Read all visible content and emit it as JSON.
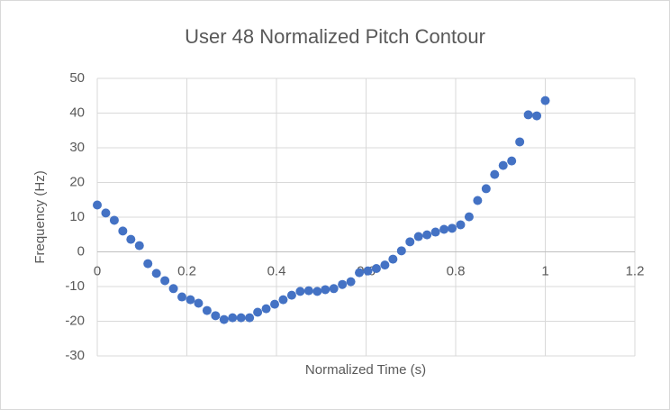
{
  "chart_data": {
    "type": "scatter",
    "title": "User 48 Normalized Pitch Contour",
    "x_label": "Normalized Time (s)",
    "y_label": "Frequency (Hz)",
    "color": "#4472c4",
    "grid": true,
    "xlim": [
      0,
      1.2
    ],
    "xticks": [
      0,
      0.2,
      0.4,
      0.6,
      0.8,
      1,
      1.2
    ],
    "ylim": [
      -30,
      50
    ],
    "yticks": [
      -30,
      -20,
      -10,
      0,
      10,
      20,
      30,
      40,
      50
    ],
    "x": [
      0,
      0.019,
      0.038,
      0.057,
      0.075,
      0.094,
      0.113,
      0.132,
      0.151,
      0.17,
      0.189,
      0.208,
      0.226,
      0.245,
      0.264,
      0.283,
      0.302,
      0.321,
      0.34,
      0.358,
      0.377,
      0.396,
      0.415,
      0.434,
      0.453,
      0.472,
      0.491,
      0.509,
      0.528,
      0.547,
      0.566,
      0.585,
      0.604,
      0.623,
      0.642,
      0.66,
      0.679,
      0.698,
      0.717,
      0.736,
      0.755,
      0.774,
      0.792,
      0.811,
      0.83,
      0.849,
      0.868,
      0.887,
      0.906,
      0.925,
      0.943,
      0.962,
      0.981,
      1
    ],
    "values": [
      13.5,
      11.2,
      9.1,
      6.0,
      3.6,
      1.8,
      -3.4,
      -6.2,
      -8.3,
      -10.6,
      -13.0,
      -13.8,
      -14.8,
      -16.9,
      -18.4,
      -19.5,
      -19.0,
      -19.0,
      -19.0,
      -17.4,
      -16.4,
      -15.1,
      -13.8,
      -12.5,
      -11.4,
      -11.2,
      -11.4,
      -10.9,
      -10.6,
      -9.4,
      -8.6,
      -6.0,
      -5.5,
      -4.8,
      -3.8,
      -2.1,
      0.3,
      2.9,
      4.4,
      4.9,
      5.7,
      6.5,
      6.8,
      7.8,
      10.1,
      14.8,
      18.2,
      22.3,
      24.9,
      26.2,
      31.7,
      39.5,
      39.2,
      43.6
    ]
  }
}
